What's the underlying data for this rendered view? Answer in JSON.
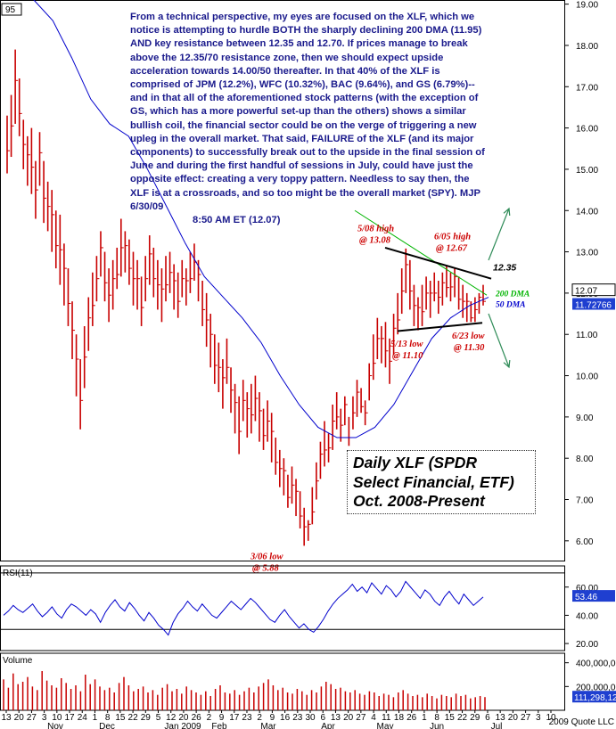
{
  "commentary": {
    "text": "From a technical perspective, my eyes are focused on the XLF, which we notice is attempting to hurdle BOTH the sharply declining 200 DMA (11.95) AND key resistance between 12.35 and 12.70. If prices manage to break above the 12.35/70 resistance zone, then we should expect upside acceleration towards 14.00/50 thereafter. In that 40% of the XLF is comprised of JPM (12.2%), WFC (10.32%), BAC (9.64%), and GS (6.79%)-- and in that all of the aforementioned stock patterns (with the exception of GS, which has a more powerful set-up than the others) shows a similar bullish coil, the financial sector could be on the verge of triggering a new upleg in the overall market. That said, FAILURE of the XLF (and its major components) to successfully break out to the upside in the final session of June and during the first handful of sessions in July, could have just the opposite effect: creating a very toppy pattern. Needless to say then, the XLF is at a crossroads, and so too might be the overall market (SPY).  MJP  6/30/09",
    "time": "8:50 AM ET  (12.07)"
  },
  "title": {
    "line1": "Daily XLF (SPDR",
    "line2": "Select Financial, ETF)",
    "line3": "Oct. 2008-Present"
  },
  "colors": {
    "bars": "#c80000",
    "ma50": "#0000cc",
    "ma200": "#00b400",
    "annotation": "#cc0000",
    "arrow": "#2e8b57",
    "commentary": "#1a1a8c",
    "rsi": "#0000cc",
    "volume": "#c80000",
    "axis_box_blue": "#1f3fd0"
  },
  "chart_data": [
    {
      "type": "bar",
      "subtype": "ohlc-price",
      "ylim": [
        5.5,
        19.1
      ],
      "yticks": [
        "6.00",
        "7.00",
        "8.00",
        "9.00",
        "10.00",
        "11.00",
        "12.00",
        "13.00",
        "14.00",
        "15.00",
        "16.00",
        "17.00",
        "18.00",
        "19.00"
      ],
      "last_price": "12.07",
      "ma50_value": "11.72766",
      "corner_label": "95",
      "x_tick_labels": [
        "13",
        "20",
        "27",
        "3",
        "10",
        "17",
        "24",
        "1",
        "8",
        "15",
        "22",
        "29",
        "5",
        "12",
        "20",
        "26",
        "2",
        "9",
        "17",
        "23",
        "2",
        "9",
        "16",
        "23",
        "30",
        "6",
        "13",
        "20",
        "27",
        "4",
        "11",
        "18",
        "26",
        "1",
        "8",
        "15",
        "22",
        "29",
        "6",
        "13",
        "20",
        "27",
        "3",
        "10"
      ],
      "months": [
        "Nov",
        "Dec",
        "Jan 2009",
        "Feb",
        "Mar",
        "Apr",
        "May",
        "Jun",
        "Jul"
      ],
      "copyright": "2009 Quote LLC",
      "bars": [
        {
          "h": 16.3,
          "l": 14.9
        },
        {
          "h": 16.8,
          "l": 15.3
        },
        {
          "h": 17.9,
          "l": 16.1
        },
        {
          "h": 17.2,
          "l": 15.8
        },
        {
          "h": 16.2,
          "l": 15.0
        },
        {
          "h": 15.8,
          "l": 14.6
        },
        {
          "h": 16.0,
          "l": 14.4
        },
        {
          "h": 15.2,
          "l": 13.8
        },
        {
          "h": 15.9,
          "l": 14.6
        },
        {
          "h": 15.2,
          "l": 13.7
        },
        {
          "h": 14.7,
          "l": 13.5
        },
        {
          "h": 14.5,
          "l": 13.0
        },
        {
          "h": 14.0,
          "l": 12.6
        },
        {
          "h": 13.9,
          "l": 12.2
        },
        {
          "h": 13.2,
          "l": 11.7
        },
        {
          "h": 12.6,
          "l": 11.2
        },
        {
          "h": 11.8,
          "l": 10.4
        },
        {
          "h": 11.0,
          "l": 9.5
        },
        {
          "h": 10.4,
          "l": 8.7
        },
        {
          "h": 11.2,
          "l": 9.7
        },
        {
          "h": 11.9,
          "l": 10.6
        },
        {
          "h": 12.5,
          "l": 11.2
        },
        {
          "h": 12.9,
          "l": 11.8
        },
        {
          "h": 13.5,
          "l": 12.4
        },
        {
          "h": 13.0,
          "l": 11.8
        },
        {
          "h": 12.6,
          "l": 11.3
        },
        {
          "h": 12.8,
          "l": 11.6
        },
        {
          "h": 13.1,
          "l": 12.1
        },
        {
          "h": 13.8,
          "l": 12.4
        },
        {
          "h": 13.5,
          "l": 12.5
        },
        {
          "h": 13.3,
          "l": 12.2
        },
        {
          "h": 13.0,
          "l": 11.7
        },
        {
          "h": 12.8,
          "l": 11.6
        },
        {
          "h": 12.4,
          "l": 11.2
        },
        {
          "h": 12.9,
          "l": 11.8
        },
        {
          "h": 13.4,
          "l": 12.2
        },
        {
          "h": 13.1,
          "l": 11.9
        },
        {
          "h": 12.8,
          "l": 11.6
        },
        {
          "h": 12.6,
          "l": 11.3
        },
        {
          "h": 12.9,
          "l": 11.8
        },
        {
          "h": 13.0,
          "l": 12.0
        },
        {
          "h": 12.7,
          "l": 11.6
        },
        {
          "h": 12.5,
          "l": 11.4
        },
        {
          "h": 12.8,
          "l": 11.9
        },
        {
          "h": 12.6,
          "l": 11.7
        },
        {
          "h": 13.0,
          "l": 12.0
        },
        {
          "h": 13.2,
          "l": 12.3
        },
        {
          "h": 12.8,
          "l": 11.8
        },
        {
          "h": 12.3,
          "l": 11.2
        },
        {
          "h": 12.0,
          "l": 10.7
        },
        {
          "h": 11.5,
          "l": 10.2
        },
        {
          "h": 11.0,
          "l": 9.8
        },
        {
          "h": 10.8,
          "l": 9.6
        },
        {
          "h": 10.4,
          "l": 9.2
        },
        {
          "h": 10.9,
          "l": 9.8
        },
        {
          "h": 10.2,
          "l": 9.1
        },
        {
          "h": 9.8,
          "l": 8.6
        },
        {
          "h": 9.5,
          "l": 8.1
        },
        {
          "h": 9.9,
          "l": 8.9
        },
        {
          "h": 9.6,
          "l": 8.5
        },
        {
          "h": 9.8,
          "l": 8.6
        },
        {
          "h": 10.0,
          "l": 8.9
        },
        {
          "h": 9.6,
          "l": 8.4
        },
        {
          "h": 9.2,
          "l": 8.2
        },
        {
          "h": 9.4,
          "l": 8.4
        },
        {
          "h": 9.1,
          "l": 7.9
        },
        {
          "h": 8.5,
          "l": 7.6
        },
        {
          "h": 8.2,
          "l": 7.3
        },
        {
          "h": 8.0,
          "l": 7.1
        },
        {
          "h": 7.6,
          "l": 6.8
        },
        {
          "h": 7.8,
          "l": 6.9
        },
        {
          "h": 7.5,
          "l": 6.6
        },
        {
          "h": 7.2,
          "l": 6.3
        },
        {
          "h": 6.8,
          "l": 5.88
        },
        {
          "h": 6.5,
          "l": 6.0
        },
        {
          "h": 7.3,
          "l": 6.4
        },
        {
          "h": 7.9,
          "l": 7.0
        },
        {
          "h": 8.4,
          "l": 7.5
        },
        {
          "h": 8.9,
          "l": 7.8
        },
        {
          "h": 8.6,
          "l": 7.9
        },
        {
          "h": 9.3,
          "l": 8.2
        },
        {
          "h": 9.6,
          "l": 8.7
        },
        {
          "h": 9.2,
          "l": 8.4
        },
        {
          "h": 9.5,
          "l": 8.8
        },
        {
          "h": 9.0,
          "l": 8.3
        },
        {
          "h": 9.5,
          "l": 8.7
        },
        {
          "h": 9.9,
          "l": 9.0
        },
        {
          "h": 9.7,
          "l": 9.1
        },
        {
          "h": 9.4,
          "l": 8.8
        },
        {
          "h": 10.3,
          "l": 9.4
        },
        {
          "h": 11.0,
          "l": 9.9
        },
        {
          "h": 11.4,
          "l": 10.4
        },
        {
          "h": 11.2,
          "l": 10.3
        },
        {
          "h": 11.3,
          "l": 10.2
        },
        {
          "h": 10.9,
          "l": 9.8
        },
        {
          "h": 11.5,
          "l": 10.5
        },
        {
          "h": 12.0,
          "l": 11.0
        },
        {
          "h": 12.6,
          "l": 11.5
        },
        {
          "h": 13.08,
          "l": 12.0
        },
        {
          "h": 12.8,
          "l": 11.6
        },
        {
          "h": 12.2,
          "l": 11.2
        },
        {
          "h": 11.9,
          "l": 11.1
        },
        {
          "h": 12.2,
          "l": 11.2
        },
        {
          "h": 12.4,
          "l": 11.6
        },
        {
          "h": 12.3,
          "l": 11.4
        },
        {
          "h": 12.5,
          "l": 11.8
        },
        {
          "h": 12.3,
          "l": 11.5
        },
        {
          "h": 12.5,
          "l": 11.7
        },
        {
          "h": 12.67,
          "l": 11.9
        },
        {
          "h": 12.5,
          "l": 11.8
        },
        {
          "h": 12.6,
          "l": 11.9
        },
        {
          "h": 12.4,
          "l": 11.6
        },
        {
          "h": 12.2,
          "l": 11.4
        },
        {
          "h": 12.0,
          "l": 11.3
        },
        {
          "h": 11.8,
          "l": 11.3
        },
        {
          "h": 11.9,
          "l": 11.3
        },
        {
          "h": 12.0,
          "l": 11.5
        },
        {
          "h": 12.2,
          "l": 11.7
        }
      ],
      "ma50": [
        19.1,
        18.6,
        17.7,
        16.7,
        16.1,
        15.8,
        15.0,
        14.1,
        13.2,
        12.4,
        11.9,
        11.4,
        10.8,
        10.0,
        9.3,
        8.75,
        8.5,
        8.5,
        8.75,
        9.3,
        10.1,
        10.9,
        11.4,
        11.7,
        11.9
      ],
      "ma200_segment": [
        [
          14.0,
          13.85
        ],
        [
          11.95
        ]
      ],
      "annotations": [
        {
          "l1": "5/08 high",
          "l2": "@ 13.08"
        },
        {
          "l1": "6/05 high",
          "l2": "@ 12.67"
        },
        {
          "l1": "5/13 low",
          "l2": "@ 11.10"
        },
        {
          "l1": "6/23 low",
          "l2": "@ 11.30"
        },
        {
          "l1": "3/06 low",
          "l2": "@ 5.88"
        }
      ],
      "resistance_label": "12.35",
      "ma_labels": [
        "200 DMA",
        "50 DMA"
      ]
    },
    {
      "type": "line",
      "name": "RSI(11)",
      "ylim": [
        15,
        75
      ],
      "yticks": [
        "20.00",
        "40.00",
        "60.00"
      ],
      "last_value": "53.46",
      "reference_lines": [
        70,
        30
      ],
      "values": [
        40,
        43,
        47,
        44,
        42,
        45,
        48,
        43,
        39,
        42,
        46,
        41,
        38,
        44,
        48,
        46,
        43,
        40,
        44,
        41,
        35,
        42,
        47,
        51,
        46,
        43,
        49,
        45,
        40,
        36,
        42,
        38,
        33,
        30,
        26,
        35,
        41,
        45,
        50,
        46,
        43,
        48,
        44,
        40,
        38,
        42,
        46,
        50,
        47,
        44,
        48,
        52,
        49,
        45,
        41,
        37,
        35,
        40,
        44,
        39,
        35,
        31,
        34,
        30,
        28,
        32,
        37,
        43,
        48,
        52,
        55,
        58,
        62,
        57,
        60,
        56,
        63,
        59,
        55,
        61,
        58,
        53,
        57,
        64,
        60,
        56,
        52,
        58,
        55,
        50,
        47,
        53,
        57,
        52,
        48,
        55,
        51,
        47,
        50,
        53
      ]
    },
    {
      "type": "bar",
      "name": "Volume",
      "yticks": [
        "200,000,00",
        "400,000,00"
      ],
      "last_value": "111,298,12",
      "ylim": [
        0,
        480
      ],
      "values": [
        260,
        190,
        310,
        220,
        240,
        280,
        200,
        170,
        330,
        250,
        210,
        190,
        270,
        230,
        180,
        210,
        160,
        300,
        220,
        260,
        200,
        170,
        190,
        150,
        230,
        280,
        210,
        160,
        180,
        200,
        150,
        170,
        130,
        190,
        220,
        160,
        180,
        140,
        200,
        170,
        150,
        130,
        160,
        120,
        180,
        210,
        150,
        140,
        170,
        130,
        160,
        190,
        150,
        200,
        230,
        260,
        210,
        170,
        190,
        150,
        140,
        180,
        160,
        130,
        170,
        150,
        200,
        240,
        220,
        180,
        190,
        160,
        150,
        170,
        140,
        130,
        160,
        150,
        120,
        140,
        130,
        110,
        150,
        170,
        140,
        120,
        130,
        110,
        140,
        120,
        100,
        130,
        120,
        110,
        140,
        120,
        130,
        100,
        110,
        120,
        111
      ]
    }
  ]
}
